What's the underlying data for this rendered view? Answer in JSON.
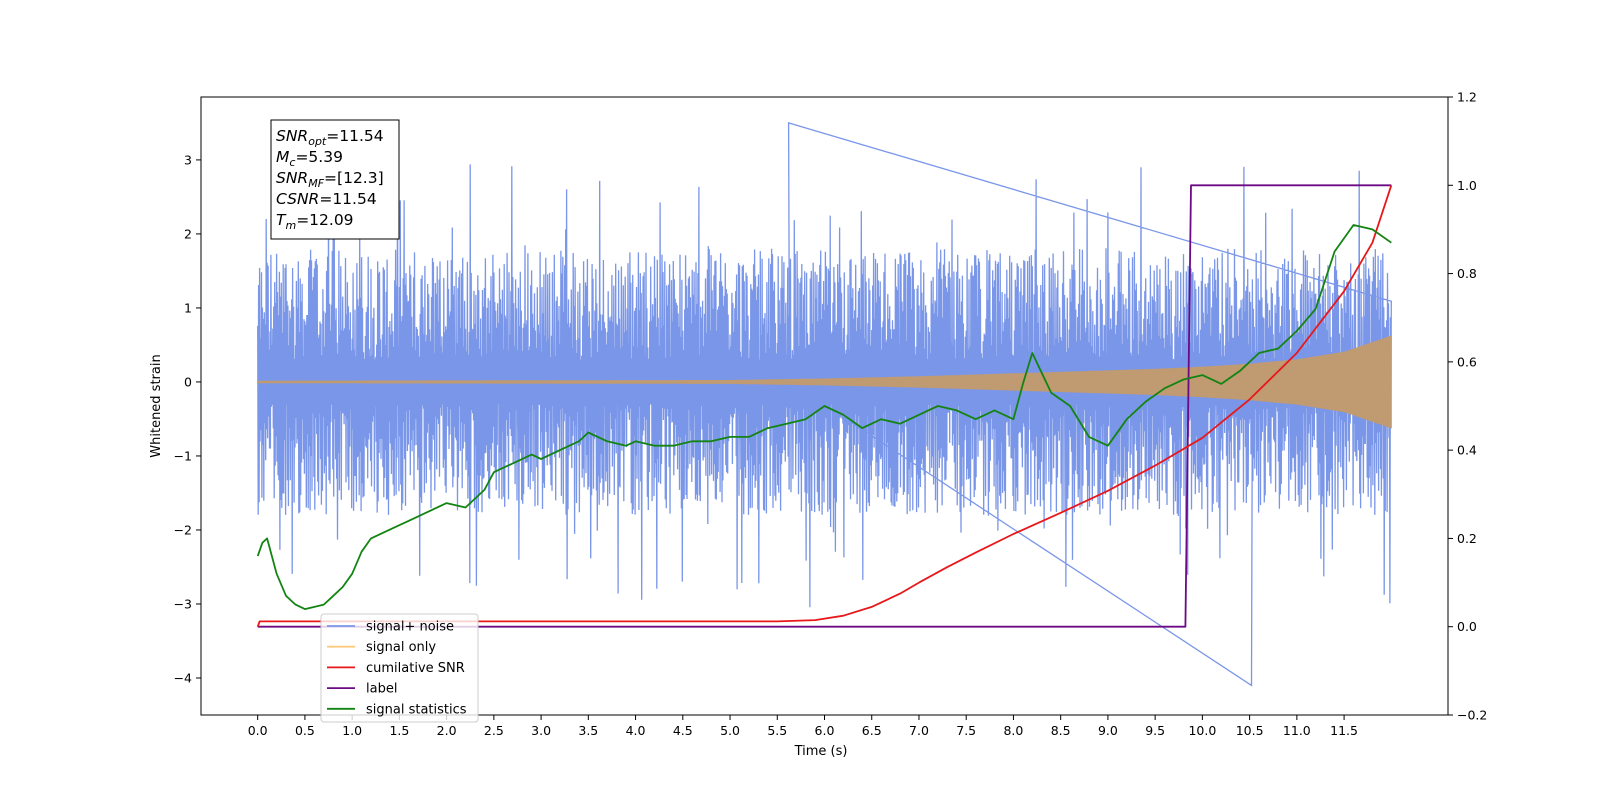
{
  "chart_data": {
    "type": "line",
    "xlabel": "Time (s)",
    "ylabel": "Whitened strain",
    "xlim": [
      -0.6,
      12.6
    ],
    "ylim_left": [
      -4.5,
      3.85
    ],
    "ylim_right": [
      -0.2,
      1.2
    ],
    "xticks": [
      "0.0",
      "0.5",
      "1.0",
      "1.5",
      "2.0",
      "2.5",
      "3.0",
      "3.5",
      "4.0",
      "4.5",
      "5.0",
      "5.5",
      "6.0",
      "6.5",
      "7.0",
      "7.5",
      "8.0",
      "8.5",
      "9.0",
      "9.5",
      "10.0",
      "10.5",
      "11.0",
      "11.5"
    ],
    "yticks_left": [
      -4,
      -3,
      -2,
      -1,
      0,
      1,
      2,
      3
    ],
    "yticks_right": [
      "−0.2",
      "0.0",
      "0.2",
      "0.4",
      "0.6",
      "0.8",
      "1.0",
      "1.2"
    ],
    "annotation": [
      {
        "base": "SNR",
        "sub": "opt",
        "value": "=11.54"
      },
      {
        "base": "M",
        "sub": "c",
        "value": "=5.39"
      },
      {
        "base": "SNR",
        "sub": "MF",
        "value": "=[12.3]"
      },
      {
        "base": "CSNR",
        "sub": "",
        "value": "=11.54"
      },
      {
        "base": "T",
        "sub": "m",
        "value": "=12.09"
      }
    ],
    "legend_position": "lower-left",
    "series": [
      {
        "name": "signal+ noise",
        "axis": "left",
        "color": "#7a96e8",
        "x_range": [
          0.0,
          12.0
        ],
        "typical_envelope": [
          -1.5,
          1.5
        ],
        "peak_range": [
          -4.1,
          3.5
        ]
      },
      {
        "name": "signal only",
        "axis": "left",
        "color": "#c09a70",
        "x": [
          0,
          5,
          6,
          7,
          7.5,
          8,
          8.5,
          9,
          9.5,
          10,
          10.5,
          11,
          11.5,
          12
        ],
        "amplitude": [
          0.01,
          0.02,
          0.04,
          0.07,
          0.09,
          0.11,
          0.13,
          0.15,
          0.17,
          0.2,
          0.24,
          0.3,
          0.4,
          0.62
        ]
      },
      {
        "name": "cumilative SNR",
        "axis": "right",
        "color": "#e8171a",
        "x": [
          0.0,
          0.02,
          5.5,
          5.9,
          6.2,
          6.5,
          6.8,
          7.0,
          7.3,
          7.6,
          8.0,
          8.5,
          9.0,
          9.5,
          10.0,
          10.5,
          11.0,
          11.5,
          11.8,
          12.0
        ],
        "values": [
          0.0,
          0.012,
          0.012,
          0.015,
          0.025,
          0.045,
          0.075,
          0.1,
          0.135,
          0.168,
          0.21,
          0.258,
          0.308,
          0.365,
          0.428,
          0.515,
          0.62,
          0.76,
          0.87,
          1.0
        ]
      },
      {
        "name": "label",
        "axis": "right",
        "color": "#6c0a84",
        "x": [
          0.0,
          9.82,
          9.88,
          12.0
        ],
        "values": [
          0.0,
          0.0,
          1.0,
          1.0
        ]
      },
      {
        "name": "signal statistics",
        "axis": "right",
        "color": "#138412",
        "x": [
          0.0,
          0.05,
          0.1,
          0.2,
          0.3,
          0.4,
          0.5,
          0.6,
          0.7,
          0.8,
          0.9,
          1.0,
          1.1,
          1.2,
          1.4,
          1.6,
          1.8,
          2.0,
          2.2,
          2.4,
          2.5,
          2.7,
          2.9,
          3.0,
          3.2,
          3.4,
          3.5,
          3.7,
          3.9,
          4.0,
          4.2,
          4.4,
          4.6,
          4.8,
          5.0,
          5.2,
          5.4,
          5.6,
          5.8,
          6.0,
          6.2,
          6.4,
          6.6,
          6.8,
          7.0,
          7.2,
          7.4,
          7.6,
          7.8,
          8.0,
          8.1,
          8.2,
          8.4,
          8.6,
          8.8,
          9.0,
          9.2,
          9.4,
          9.6,
          9.8,
          10.0,
          10.2,
          10.4,
          10.6,
          10.8,
          11.0,
          11.2,
          11.4,
          11.6,
          11.8,
          12.0
        ],
        "values": [
          0.16,
          0.19,
          0.2,
          0.12,
          0.07,
          0.05,
          0.04,
          0.045,
          0.05,
          0.07,
          0.09,
          0.12,
          0.17,
          0.2,
          0.22,
          0.24,
          0.26,
          0.28,
          0.27,
          0.31,
          0.35,
          0.37,
          0.39,
          0.38,
          0.4,
          0.42,
          0.44,
          0.42,
          0.41,
          0.42,
          0.41,
          0.41,
          0.42,
          0.42,
          0.43,
          0.43,
          0.45,
          0.46,
          0.47,
          0.5,
          0.48,
          0.45,
          0.47,
          0.46,
          0.48,
          0.5,
          0.49,
          0.47,
          0.49,
          0.47,
          0.55,
          0.62,
          0.53,
          0.5,
          0.43,
          0.41,
          0.47,
          0.51,
          0.54,
          0.56,
          0.57,
          0.55,
          0.58,
          0.62,
          0.63,
          0.67,
          0.72,
          0.85,
          0.91,
          0.9,
          0.87
        ]
      }
    ]
  }
}
